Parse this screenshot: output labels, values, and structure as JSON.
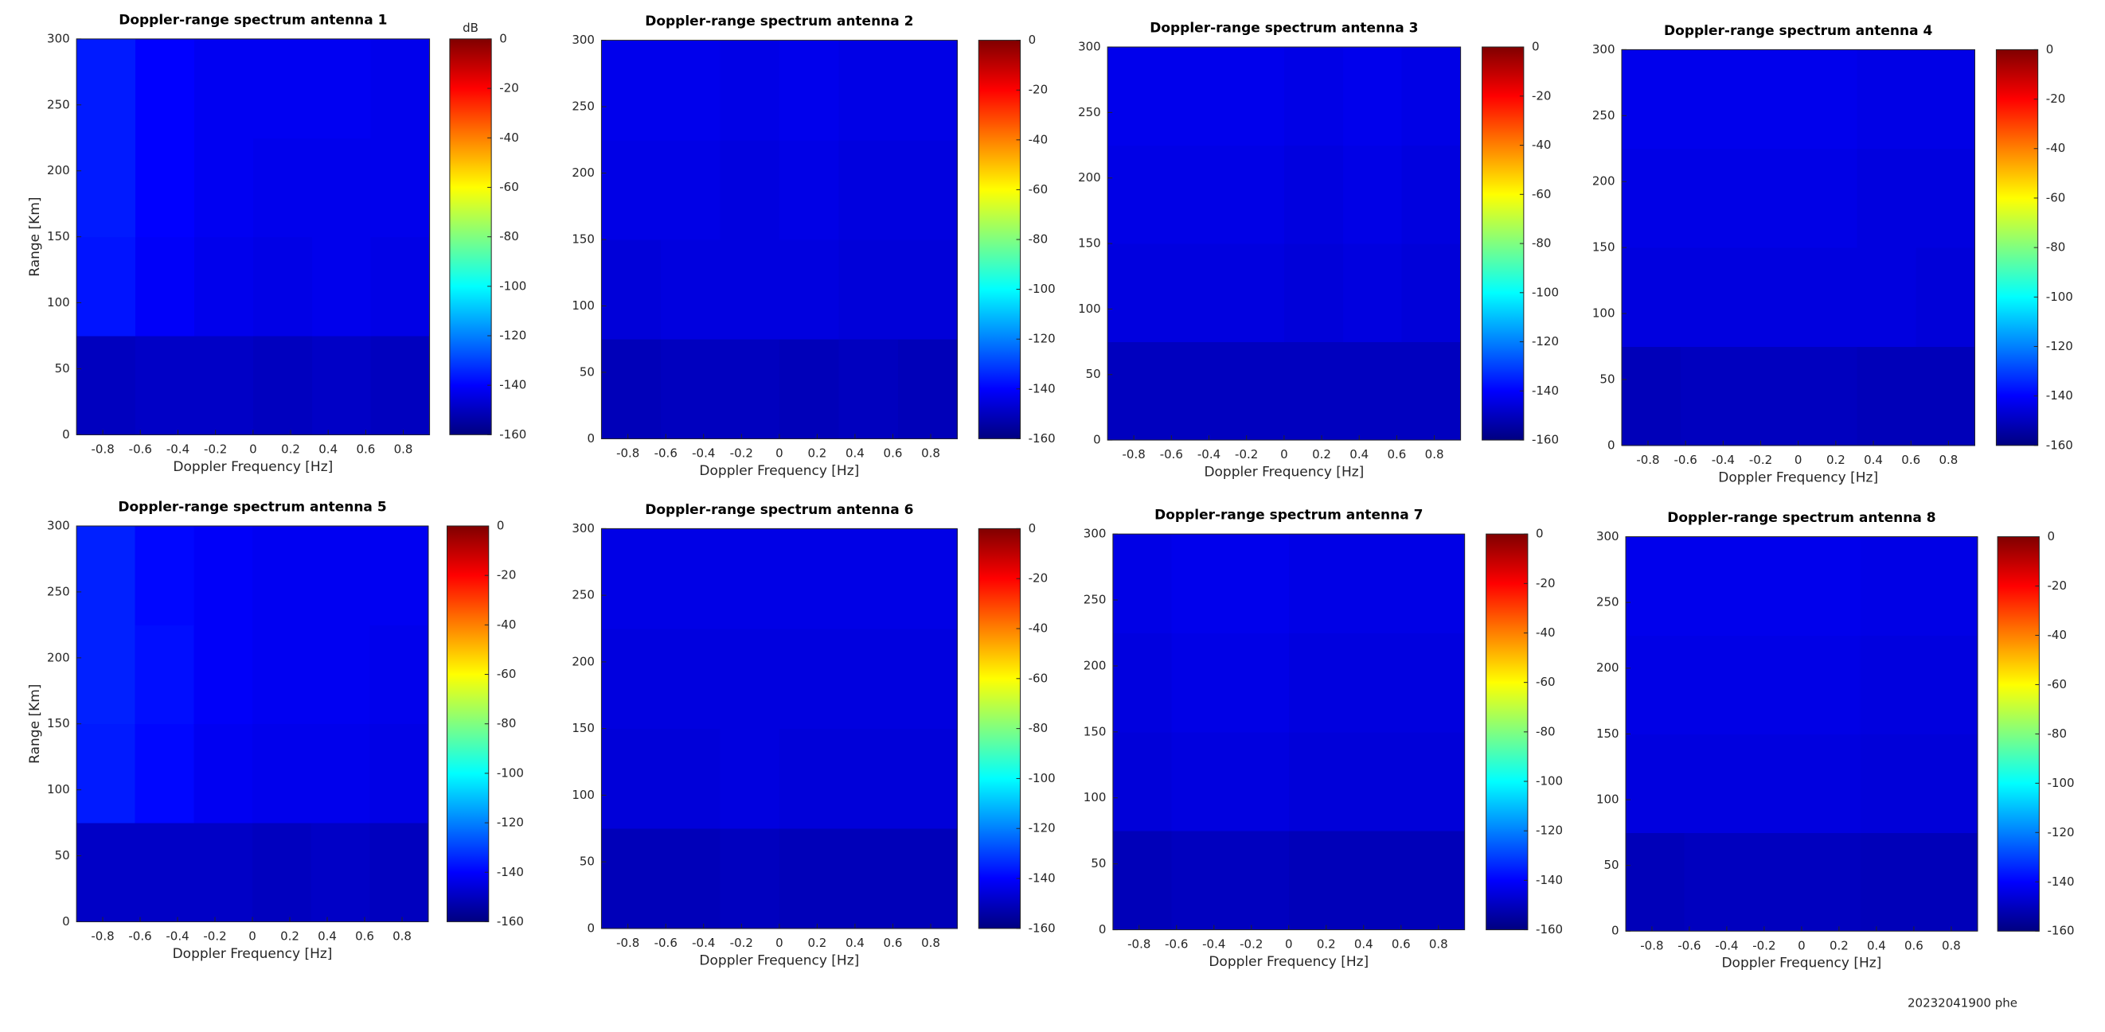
{
  "chart_data": [
    {
      "type": "heatmap",
      "title": "Doppler-range spectrum antenna 1",
      "xlabel": "Doppler Frequency [Hz]",
      "ylabel": "Range [Km]",
      "clabel": "dB",
      "colormap": "jet",
      "xlim": [
        -0.94,
        0.94
      ],
      "xticks": [
        -0.8,
        -0.6,
        -0.4,
        -0.2,
        0,
        0.2,
        0.4,
        0.6,
        0.8
      ],
      "ylim": [
        0,
        300
      ],
      "yticks": [
        0,
        50,
        100,
        150,
        200,
        250,
        300
      ],
      "clim": [
        -160,
        0
      ],
      "cticks": [
        0,
        -20,
        -40,
        -60,
        -80,
        -100,
        -120,
        -140,
        -160
      ],
      "z": [
        [
          -150,
          -149,
          -149,
          -150,
          -149,
          -150
        ],
        [
          -137,
          -141,
          -143,
          -144,
          -143,
          -144
        ],
        [
          -136,
          -140,
          -142,
          -143,
          -143,
          -143
        ],
        [
          -136,
          -140,
          -142,
          -142,
          -142,
          -143
        ]
      ]
    },
    {
      "type": "heatmap",
      "title": "Doppler-range spectrum antenna 2",
      "xlabel": "Doppler Frequency [Hz]",
      "colormap": "jet",
      "xlim": [
        -0.94,
        0.94
      ],
      "xticks": [
        -0.8,
        -0.6,
        -0.4,
        -0.2,
        0,
        0.2,
        0.4,
        0.6,
        0.8
      ],
      "ylim": [
        0,
        300
      ],
      "yticks": [
        0,
        50,
        100,
        150,
        200,
        250,
        300
      ],
      "clim": [
        -160,
        0
      ],
      "cticks": [
        0,
        -20,
        -40,
        -60,
        -80,
        -100,
        -120,
        -140,
        -160
      ],
      "z": [
        [
          -151,
          -150,
          -150,
          -151,
          -150,
          -151
        ],
        [
          -146,
          -145,
          -145,
          -145,
          -146,
          -146
        ],
        [
          -144,
          -144,
          -145,
          -144,
          -145,
          -145
        ],
        [
          -143,
          -143,
          -144,
          -143,
          -144,
          -144
        ]
      ]
    },
    {
      "type": "heatmap",
      "title": "Doppler-range spectrum antenna 3",
      "xlabel": "Doppler Frequency [Hz]",
      "colormap": "jet",
      "xlim": [
        -0.94,
        0.94
      ],
      "xticks": [
        -0.8,
        -0.6,
        -0.4,
        -0.2,
        0,
        0.2,
        0.4,
        0.6,
        0.8
      ],
      "ylim": [
        0,
        300
      ],
      "yticks": [
        0,
        50,
        100,
        150,
        200,
        250,
        300
      ],
      "clim": [
        -160,
        0
      ],
      "cticks": [
        0,
        -20,
        -40,
        -60,
        -80,
        -100,
        -120,
        -140,
        -160
      ],
      "z": [
        [
          -150,
          -150,
          -150,
          -150,
          -150,
          -150
        ],
        [
          -145,
          -145,
          -145,
          -146,
          -145,
          -146
        ],
        [
          -144,
          -144,
          -144,
          -145,
          -144,
          -145
        ],
        [
          -143,
          -143,
          -143,
          -144,
          -143,
          -144
        ]
      ]
    },
    {
      "type": "heatmap",
      "title": "Doppler-range spectrum antenna 4",
      "xlabel": "Doppler Frequency [Hz]",
      "colormap": "jet",
      "xlim": [
        -0.94,
        0.94
      ],
      "xticks": [
        -0.8,
        -0.6,
        -0.4,
        -0.2,
        0,
        0.2,
        0.4,
        0.6,
        0.8
      ],
      "ylim": [
        0,
        300
      ],
      "yticks": [
        0,
        50,
        100,
        150,
        200,
        250,
        300
      ],
      "clim": [
        -160,
        0
      ],
      "cticks": [
        0,
        -20,
        -40,
        -60,
        -80,
        -100,
        -120,
        -140,
        -160
      ],
      "z": [
        [
          -151,
          -150,
          -150,
          -150,
          -151,
          -151
        ],
        [
          -145,
          -145,
          -145,
          -145,
          -145,
          -146
        ],
        [
          -144,
          -144,
          -144,
          -144,
          -145,
          -145
        ],
        [
          -143,
          -143,
          -143,
          -143,
          -144,
          -144
        ]
      ]
    },
    {
      "type": "heatmap",
      "title": "Doppler-range spectrum antenna 5",
      "xlabel": "Doppler Frequency [Hz]",
      "ylabel": "Range [Km]",
      "colormap": "jet",
      "xlim": [
        -0.94,
        0.94
      ],
      "xticks": [
        -0.8,
        -0.6,
        -0.4,
        -0.2,
        0,
        0.2,
        0.4,
        0.6,
        0.8
      ],
      "ylim": [
        0,
        300
      ],
      "yticks": [
        0,
        50,
        100,
        150,
        200,
        250,
        300
      ],
      "clim": [
        -160,
        0
      ],
      "cticks": [
        0,
        -20,
        -40,
        -60,
        -80,
        -100,
        -120,
        -140,
        -160
      ],
      "z": [
        [
          -149,
          -149,
          -149,
          -150,
          -149,
          -150
        ],
        [
          -136,
          -139,
          -142,
          -143,
          -143,
          -144
        ],
        [
          -135,
          -138,
          -141,
          -142,
          -142,
          -143
        ],
        [
          -135,
          -139,
          -141,
          -142,
          -142,
          -142
        ]
      ]
    },
    {
      "type": "heatmap",
      "title": "Doppler-range spectrum antenna 6",
      "xlabel": "Doppler Frequency [Hz]",
      "colormap": "jet",
      "xlim": [
        -0.94,
        0.94
      ],
      "xticks": [
        -0.8,
        -0.6,
        -0.4,
        -0.2,
        0,
        0.2,
        0.4,
        0.6,
        0.8
      ],
      "ylim": [
        0,
        300
      ],
      "yticks": [
        0,
        50,
        100,
        150,
        200,
        250,
        300
      ],
      "clim": [
        -160,
        0
      ],
      "cticks": [
        0,
        -20,
        -40,
        -60,
        -80,
        -100,
        -120,
        -140,
        -160
      ],
      "z": [
        [
          -151,
          -151,
          -150,
          -151,
          -151,
          -151
        ],
        [
          -146,
          -146,
          -145,
          -146,
          -146,
          -146
        ],
        [
          -145,
          -145,
          -145,
          -145,
          -145,
          -145
        ],
        [
          -144,
          -144,
          -144,
          -144,
          -144,
          -144
        ]
      ]
    },
    {
      "type": "heatmap",
      "title": "Doppler-range spectrum antenna 7",
      "xlabel": "Doppler Frequency [Hz]",
      "colormap": "jet",
      "xlim": [
        -0.94,
        0.94
      ],
      "xticks": [
        -0.8,
        -0.6,
        -0.4,
        -0.2,
        0,
        0.2,
        0.4,
        0.6,
        0.8
      ],
      "ylim": [
        0,
        300
      ],
      "yticks": [
        0,
        50,
        100,
        150,
        200,
        250,
        300
      ],
      "clim": [
        -160,
        0
      ],
      "cticks": [
        0,
        -20,
        -40,
        -60,
        -80,
        -100,
        -120,
        -140,
        -160
      ],
      "z": [
        [
          -151,
          -150,
          -150,
          -151,
          -151,
          -151
        ],
        [
          -146,
          -145,
          -145,
          -146,
          -146,
          -146
        ],
        [
          -145,
          -144,
          -144,
          -145,
          -145,
          -145
        ],
        [
          -144,
          -143,
          -143,
          -144,
          -144,
          -144
        ]
      ]
    },
    {
      "type": "heatmap",
      "title": "Doppler-range spectrum antenna 8",
      "xlabel": "Doppler Frequency [Hz]",
      "colormap": "jet",
      "xlim": [
        -0.94,
        0.94
      ],
      "xticks": [
        -0.8,
        -0.6,
        -0.4,
        -0.2,
        0,
        0.2,
        0.4,
        0.6,
        0.8
      ],
      "ylim": [
        0,
        300
      ],
      "yticks": [
        0,
        50,
        100,
        150,
        200,
        250,
        300
      ],
      "clim": [
        -160,
        0
      ],
      "cticks": [
        0,
        -20,
        -40,
        -60,
        -80,
        -100,
        -120,
        -140,
        -160
      ],
      "z": [
        [
          -151,
          -150,
          -150,
          -150,
          -151,
          -151
        ],
        [
          -145,
          -145,
          -145,
          -145,
          -146,
          -146
        ],
        [
          -144,
          -144,
          -144,
          -144,
          -145,
          -145
        ],
        [
          -143,
          -143,
          -143,
          -143,
          -144,
          -144
        ]
      ]
    }
  ],
  "footer": "20232041900 phe"
}
